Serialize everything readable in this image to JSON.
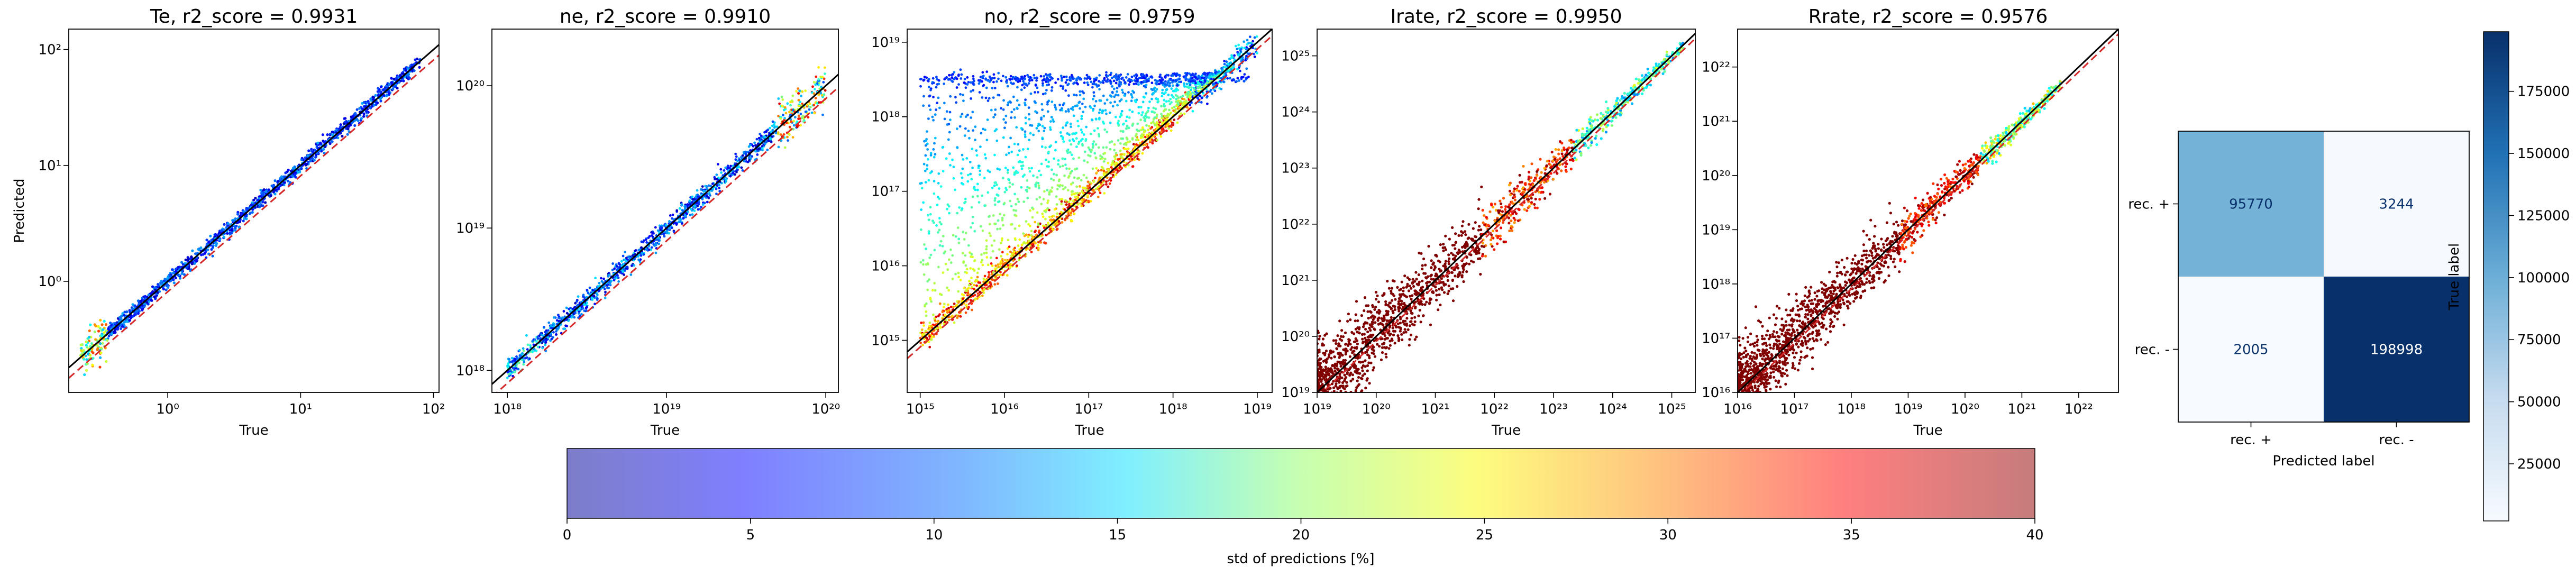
{
  "figure": {
    "colorbar_label": "std of predictions [%]",
    "colorbar_ticks": [
      0,
      5,
      10,
      15,
      20,
      25,
      30,
      35,
      40
    ],
    "confusion_colorbar_ticks": [
      25000,
      50000,
      75000,
      100000,
      125000,
      150000,
      175000
    ]
  },
  "chart_data": [
    {
      "type": "scatter",
      "title": "Te, r2_score = 0.9931",
      "xlabel": "True",
      "ylabel": "Predicted",
      "xscale": "log",
      "yscale": "log",
      "xlim": [
        0.18,
        110
      ],
      "ylim": [
        0.11,
        150
      ],
      "xticks": [
        1,
        10,
        100
      ],
      "yticks": [
        1,
        10,
        100
      ],
      "tick_labels_x": [
        "10⁰",
        "10¹",
        "10²"
      ],
      "tick_labels_y": [
        "10⁰",
        "10¹",
        "10²"
      ],
      "reference_lines": [
        "y = x (black)",
        "lower bound (red dashed)"
      ],
      "points_sample": [
        [
          0.22,
          0.2
        ],
        [
          0.3,
          0.3
        ],
        [
          0.5,
          0.5
        ],
        [
          1,
          1
        ],
        [
          3,
          3
        ],
        [
          10,
          10
        ],
        [
          30,
          30
        ],
        [
          80,
          80
        ]
      ],
      "r2_score": 0.9931
    },
    {
      "type": "scatter",
      "title": "ne, r2_score = 0.9910",
      "xlabel": "True",
      "ylabel": "",
      "xscale": "log",
      "yscale": "log",
      "xlim": [
        8e+17,
        1.2e+20
      ],
      "ylim": [
        7e+17,
        2.5e+20
      ],
      "xticks": [
        1e+18,
        1e+19,
        1e+20
      ],
      "yticks": [
        1e+18,
        1e+19,
        1e+20
      ],
      "tick_labels_x": [
        "10¹⁸",
        "10¹⁹",
        "10²⁰"
      ],
      "tick_labels_y": [
        "10¹⁸",
        "10¹⁹",
        "10²⁰"
      ],
      "reference_lines": [
        "y = x (black)",
        "lower bound (red dashed)"
      ],
      "points_sample": [
        [
          1e+18,
          1.1e+18
        ],
        [
          3e+18,
          3e+18
        ],
        [
          1e+19,
          1e+19
        ],
        [
          3e+19,
          3e+19
        ],
        [
          1e+20,
          1e+20
        ]
      ],
      "r2_score": 0.991
    },
    {
      "type": "scatter",
      "title": "no, r2_score = 0.9759",
      "xlabel": "True",
      "ylabel": "",
      "xscale": "log",
      "yscale": "log",
      "xlim": [
        700000000000000.0,
        1.5e+19
      ],
      "ylim": [
        200000000000000.0,
        1.5e+19
      ],
      "xticks": [
        1000000000000000.0,
        1e+16,
        1e+17,
        1e+18,
        1e+19
      ],
      "yticks": [
        1000000000000000.0,
        1e+16,
        1e+17,
        1e+18,
        1e+19
      ],
      "tick_labels_x": [
        "10¹⁵",
        "10¹⁶",
        "10¹⁷",
        "10¹⁸",
        "10¹⁹"
      ],
      "tick_labels_y": [
        "10¹⁵",
        "10¹⁶",
        "10¹⁷",
        "10¹⁸",
        "10¹⁹"
      ],
      "reference_lines": [
        "y = x (black)",
        "lower bound (red dashed)"
      ],
      "points_sample": [
        [
          1000000000000000.0,
          1000000000000000.0
        ],
        [
          1e+16,
          1e+16
        ],
        [
          1e+17,
          1e+17
        ],
        [
          1e+18,
          1e+18
        ],
        [
          1e+19,
          1e+19
        ],
        [
          1000000000000000.0,
          3e+18
        ],
        [
          1e+17,
          3e+18
        ]
      ],
      "r2_score": 0.9759
    },
    {
      "type": "scatter",
      "title": "Irate, r2_score = 0.9950",
      "xlabel": "True",
      "ylabel": "",
      "xscale": "log",
      "yscale": "log",
      "xlim": [
        1e+19,
        2.5e+25
      ],
      "ylim": [
        1e+19,
        3e+25
      ],
      "xticks": [
        1e+19,
        1e+20,
        1e+21,
        1e+22,
        1e+23,
        1e+24,
        1e+25
      ],
      "yticks": [
        1e+19,
        1e+20,
        1e+21,
        1e+22,
        1e+23,
        1e+24,
        1e+25
      ],
      "tick_labels_x": [
        "10¹⁹",
        "10²⁰",
        "10²¹",
        "10²²",
        "10²³",
        "10²⁴",
        "10²⁵"
      ],
      "tick_labels_y": [
        "10¹⁹",
        "10²⁰",
        "10²¹",
        "10²²",
        "10²³",
        "10²⁴",
        "10²⁵"
      ],
      "reference_lines": [
        "y = x (black)",
        "lower bound (red dashed)"
      ],
      "points_sample": [
        [
          1e+19,
          1e+19
        ],
        [
          1e+21,
          1e+21
        ],
        [
          1e+23,
          1e+23
        ],
        [
          1e+25,
          1e+25
        ]
      ],
      "r2_score": 0.995
    },
    {
      "type": "scatter",
      "title": "Rrate, r2_score = 0.9576",
      "xlabel": "True",
      "ylabel": "",
      "xscale": "log",
      "yscale": "log",
      "xlim": [
        1e+16,
        5e+22
      ],
      "ylim": [
        1e+16,
        5e+22
      ],
      "xticks": [
        1e+16,
        1e+17,
        1e+18,
        1e+19,
        1e+20,
        1e+21,
        1e+22
      ],
      "yticks": [
        1e+16,
        1e+17,
        1e+18,
        1e+19,
        1e+20,
        1e+21,
        1e+22
      ],
      "tick_labels_x": [
        "10¹⁶",
        "10¹⁷",
        "10¹⁸",
        "10¹⁹",
        "10²⁰",
        "10²¹",
        "10²²"
      ],
      "tick_labels_y": [
        "10¹⁶",
        "10¹⁷",
        "10¹⁸",
        "10¹⁹",
        "10²⁰",
        "10²¹",
        "10²²"
      ],
      "reference_lines": [
        "y = x (black)",
        "lower bound (red dashed)"
      ],
      "points_sample": [
        [
          1e+16,
          1e+16
        ],
        [
          1e+18,
          1e+18
        ],
        [
          1e+20,
          1e+20
        ],
        [
          1e+22,
          1e+22
        ]
      ],
      "r2_score": 0.9576
    },
    {
      "type": "heatmap",
      "title": "",
      "xlabel": "Predicted label",
      "ylabel": "True label",
      "row_labels": [
        "rec. +",
        "rec. -"
      ],
      "col_labels": [
        "rec. +",
        "rec. -"
      ],
      "values": [
        [
          95770,
          3244
        ],
        [
          2005,
          198998
        ]
      ],
      "colormap": "Blues",
      "vmin": 2005,
      "vmax": 198998
    }
  ]
}
